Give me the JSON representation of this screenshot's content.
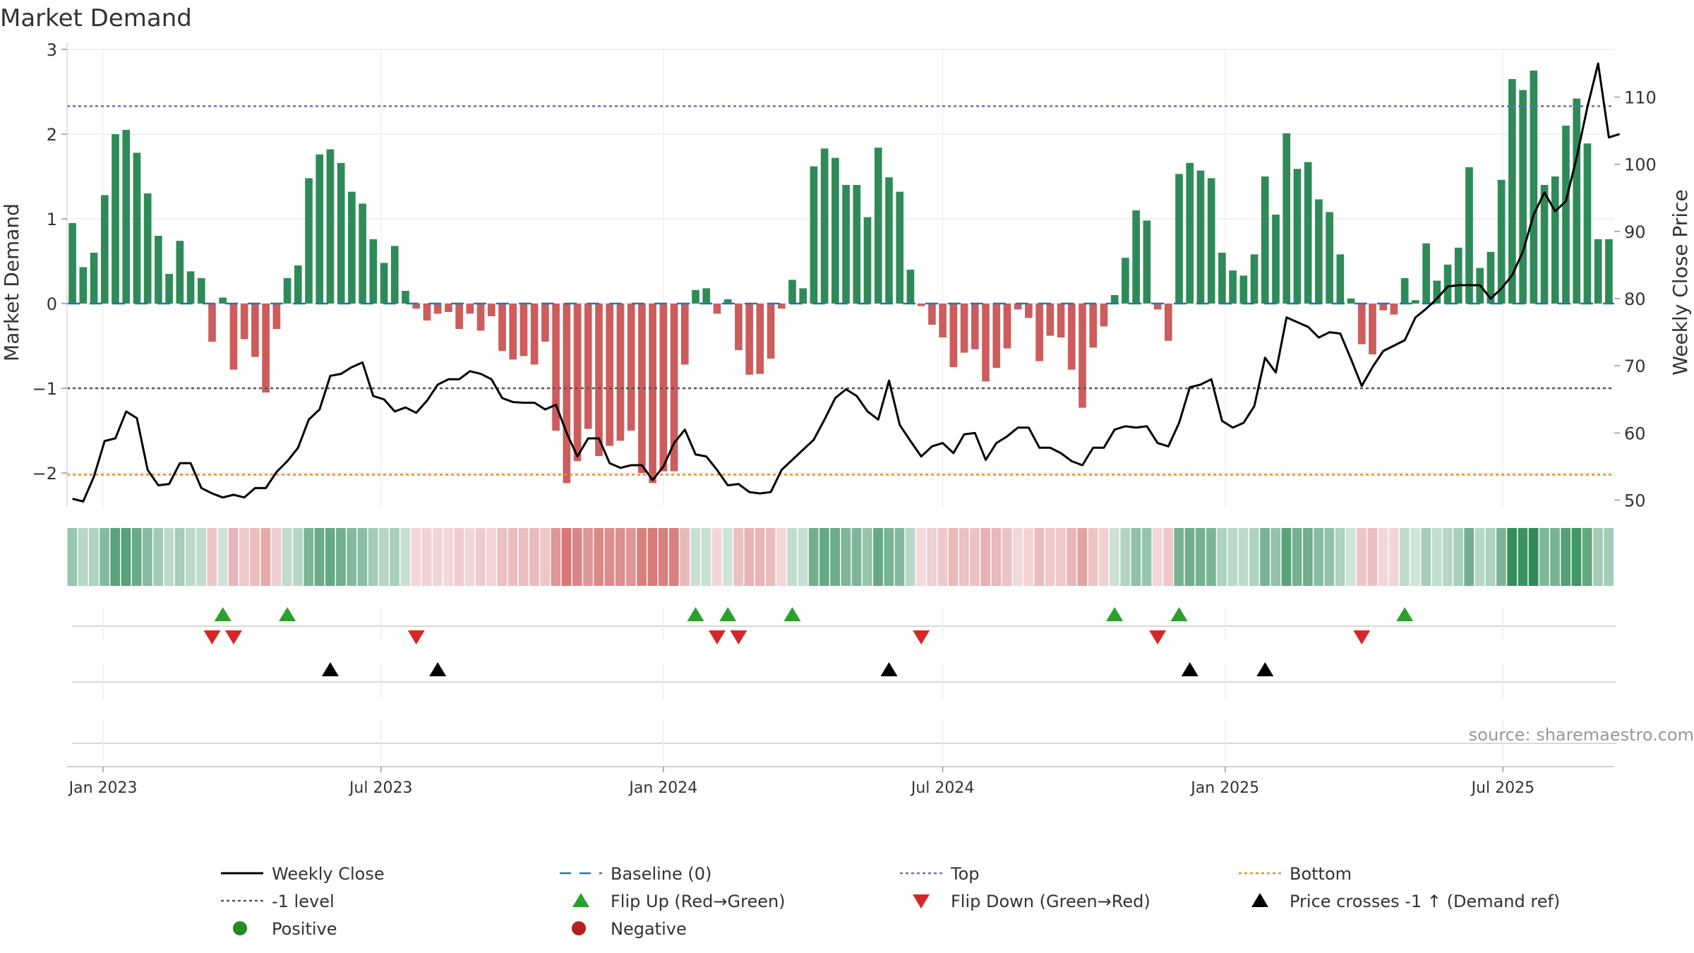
{
  "chart_data": {
    "type": "bar+line",
    "title": "Market Demand",
    "ylabel": "Market Demand",
    "y2label": "Weekly Close Price",
    "source": "source: sharemaestro.com",
    "ylim": [
      -2.4,
      3.0
    ],
    "y2lim": [
      49.0,
      117.1
    ],
    "yticks": [
      3,
      2,
      1,
      0,
      -1,
      -2
    ],
    "ytick_labels": [
      "3",
      "2",
      "1",
      "0",
      "−1",
      "−2"
    ],
    "y2ticks": [
      110,
      100,
      90,
      80,
      70,
      60,
      50
    ],
    "ref_lines": {
      "top": 2.33,
      "bottom": -2.02,
      "minus_one": -1.0,
      "baseline": 0
    },
    "start_date": "2022-12-12",
    "week_days": 7,
    "xticks": [
      {
        "label": "Jan 2023",
        "date": "2023-01-01"
      },
      {
        "label": "Jul 2023",
        "date": "2023-07-01"
      },
      {
        "label": "Jan 2024",
        "date": "2024-01-01"
      },
      {
        "label": "Jul 2024",
        "date": "2024-07-01"
      },
      {
        "label": "Jan 2025",
        "date": "2025-01-01"
      },
      {
        "label": "Jul 2025",
        "date": "2025-07-01"
      }
    ],
    "demand": [
      0.95,
      0.43,
      0.6,
      1.28,
      2.0,
      2.05,
      1.78,
      1.3,
      0.8,
      0.35,
      0.74,
      0.38,
      0.3,
      -0.45,
      0.07,
      -0.78,
      -0.42,
      -0.63,
      -1.05,
      -0.3,
      0.3,
      0.45,
      1.48,
      1.76,
      1.82,
      1.66,
      1.32,
      1.18,
      0.76,
      0.48,
      0.68,
      0.15,
      -0.06,
      -0.2,
      -0.12,
      -0.1,
      -0.3,
      -0.12,
      -0.32,
      -0.15,
      -0.56,
      -0.66,
      -0.62,
      -0.72,
      -0.45,
      -1.5,
      -2.12,
      -1.86,
      -1.48,
      -1.8,
      -1.68,
      -1.62,
      -1.5,
      -2.0,
      -2.12,
      -1.98,
      -1.98,
      -0.72,
      0.16,
      0.18,
      -0.12,
      0.05,
      -0.55,
      -0.84,
      -0.83,
      -0.65,
      -0.06,
      0.28,
      0.18,
      1.62,
      1.83,
      1.72,
      1.4,
      1.4,
      1.02,
      1.84,
      1.49,
      1.32,
      0.4,
      -0.03,
      -0.25,
      -0.4,
      -0.75,
      -0.58,
      -0.54,
      -0.92,
      -0.76,
      -0.53,
      -0.07,
      -0.17,
      -0.68,
      -0.38,
      -0.4,
      -0.78,
      -1.23,
      -0.52,
      -0.27,
      0.1,
      0.54,
      1.1,
      0.98,
      -0.07,
      -0.44,
      1.53,
      1.66,
      1.57,
      1.48,
      0.6,
      0.39,
      0.33,
      0.58,
      1.5,
      1.05,
      2.01,
      1.59,
      1.67,
      1.23,
      1.08,
      0.58,
      0.06,
      -0.48,
      -0.6,
      -0.08,
      -0.13,
      0.3,
      0.04,
      0.71,
      0.27,
      0.46,
      0.66,
      1.61,
      0.42,
      0.61,
      1.46,
      2.65,
      2.52,
      2.75,
      1.4,
      1.5,
      2.1,
      2.42,
      1.89,
      0.76,
      0.76
    ],
    "close": [
      50.2,
      49.8,
      53.5,
      58.8,
      59.2,
      63.2,
      62.2,
      54.5,
      52.2,
      52.4,
      55.5,
      55.5,
      51.8,
      51.0,
      50.4,
      50.8,
      50.4,
      51.8,
      51.8,
      54.2,
      55.8,
      57.8,
      62.0,
      63.5,
      68.5,
      68.8,
      69.8,
      70.5,
      65.5,
      65.0,
      63.2,
      63.8,
      63.0,
      64.8,
      67.2,
      68.0,
      68.0,
      69.2,
      68.8,
      68.0,
      65.2,
      64.6,
      64.5,
      64.5,
      63.5,
      64.2,
      60.0,
      56.5,
      59.2,
      59.2,
      55.5,
      54.8,
      55.2,
      55.2,
      53.0,
      55.0,
      58.5,
      60.5,
      56.8,
      56.5,
      54.5,
      52.2,
      52.4,
      51.2,
      51.0,
      51.2,
      54.5,
      56.0,
      57.5,
      59.0,
      62.0,
      65.2,
      66.5,
      65.5,
      63.2,
      62.0,
      67.8,
      61.2,
      58.8,
      56.5,
      58.0,
      58.5,
      57.0,
      59.8,
      60.0,
      56.0,
      58.5,
      59.5,
      60.8,
      60.8,
      57.8,
      57.8,
      57.0,
      55.8,
      55.2,
      57.8,
      57.8,
      60.5,
      61.0,
      60.8,
      61.0,
      58.5,
      58.0,
      61.5,
      66.8,
      67.2,
      68.0,
      61.8,
      60.8,
      61.5,
      64.0,
      71.2,
      69.0,
      77.2,
      76.5,
      75.8,
      74.2,
      75.0,
      74.8,
      71.0,
      67.0,
      69.8,
      72.2,
      73.0,
      73.8,
      77.2,
      78.5,
      80.0,
      81.8,
      82.0,
      82.0,
      82.0,
      80.0,
      81.5,
      83.5,
      87.0,
      92.5,
      95.8,
      93.0,
      94.5,
      101.0,
      108.5,
      115.0,
      104.0,
      104.5
    ]
  },
  "legend": {
    "items": [
      {
        "label": "Weekly Close",
        "icon": "black-solid-line"
      },
      {
        "label": "Baseline (0)",
        "icon": "blue-dashed-line"
      },
      {
        "label": "Top",
        "icon": "purple-dotted-line"
      },
      {
        "label": "Bottom",
        "icon": "orange-dotted-line"
      },
      {
        "label": "-1 level",
        "icon": "gray-dotted-line"
      },
      {
        "label": "Flip Up (Red→Green)",
        "icon": "green-up-triangle"
      },
      {
        "label": "Flip Down (Green→Red)",
        "icon": "red-down-triangle"
      },
      {
        "label": "Price crosses -1 ↑ (Demand ref)",
        "icon": "black-up-triangle"
      },
      {
        "label": "Positive",
        "icon": "green-dot"
      },
      {
        "label": "Negative",
        "icon": "red-dot"
      }
    ]
  },
  "colors": {
    "positive": "#2e8b57",
    "negative": "#cd5c5c",
    "close_line": "#000000",
    "top_line": "#6a6ad0",
    "bottom_line": "#f08a24",
    "minus_one_line": "#555555",
    "baseline": "#1f77b4",
    "flip_up": "#2ca02c",
    "flip_down": "#d62728",
    "cross_marker": "#000000",
    "legend_positive": "#228b22",
    "legend_negative": "#b22222"
  }
}
